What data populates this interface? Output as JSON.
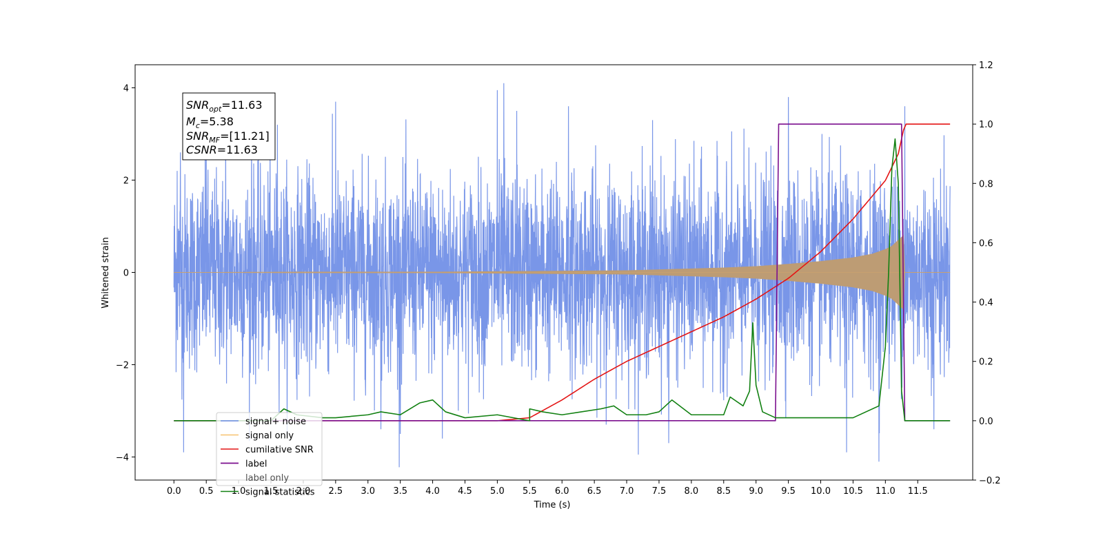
{
  "chart_data": {
    "type": "line",
    "xlabel": "Time (s)",
    "ylabel": "Whitened strain",
    "xlim": [
      -0.6,
      12.35
    ],
    "ylim": [
      -4.5,
      4.5
    ],
    "y2lim": [
      -0.2,
      1.2
    ],
    "x_ticks": [
      0.0,
      0.5,
      1.0,
      1.5,
      2.0,
      2.5,
      3.0,
      3.5,
      4.0,
      4.5,
      5.0,
      5.5,
      6.0,
      6.5,
      7.0,
      7.5,
      8.0,
      8.5,
      9.0,
      9.5,
      10.0,
      10.5,
      11.0,
      11.5
    ],
    "x_tick_labels": [
      "0.0",
      "0.5",
      "1.0",
      "1.5",
      "2.0",
      "2.5",
      "3.0",
      "3.5",
      "4.0",
      "4.5",
      "5.0",
      "5.5",
      "6.0",
      "6.5",
      "7.0",
      "7.5",
      "8.0",
      "8.5",
      "9.0",
      "9.5",
      "10.0",
      "10.5",
      "11.0",
      "11.5"
    ],
    "y_ticks": [
      -4,
      -2,
      0,
      2,
      4
    ],
    "y_tick_labels": [
      "−4",
      "−2",
      "0",
      "2",
      "4"
    ],
    "y2_ticks": [
      -0.2,
      0.0,
      0.2,
      0.4,
      0.6,
      0.8,
      1.0,
      1.2
    ],
    "y2_tick_labels": [
      "−0.2",
      "0.0",
      "0.2",
      "0.4",
      "0.6",
      "0.8",
      "1.0",
      "1.2"
    ],
    "grid": false,
    "legend_position": "lower-left",
    "annotation": {
      "snr_opt": "=11.63",
      "mc": "=5.38",
      "snr_mf": "=[11.21]",
      "csnr": "=11.63"
    },
    "series": [
      {
        "name": "signal+ noise",
        "color": "#6a8be6",
        "axis": "left",
        "kind": "noise",
        "t_range": [
          0.0,
          12.0
        ],
        "std": 1.05,
        "peaks": [
          [
            0.05,
            2.2
          ],
          [
            0.1,
            2.6
          ],
          [
            0.15,
            -3.9
          ],
          [
            0.5,
            3.0
          ],
          [
            0.8,
            3.4
          ],
          [
            1.2,
            3.1
          ],
          [
            1.6,
            3.2
          ],
          [
            2.5,
            3.7
          ],
          [
            3.2,
            -3.4
          ],
          [
            3.5,
            -3.5
          ],
          [
            4.15,
            -3.6
          ],
          [
            5.0,
            3.95
          ],
          [
            5.1,
            4.1
          ],
          [
            5.3,
            3.5
          ],
          [
            6.1,
            3.6
          ],
          [
            7.4,
            3.3
          ],
          [
            7.65,
            -3.7
          ],
          [
            9.5,
            3.8
          ],
          [
            10.4,
            -3.9
          ],
          [
            10.9,
            -4.1
          ],
          [
            11.3,
            3.6
          ],
          [
            11.75,
            -3.4
          ]
        ]
      },
      {
        "name": "signal only",
        "color": "#f5b04b",
        "axis": "left",
        "kind": "chirp",
        "points": [
          [
            0.0,
            0.0
          ],
          [
            2.0,
            0.01
          ],
          [
            4.0,
            0.01
          ],
          [
            5.0,
            0.02
          ],
          [
            6.0,
            0.03
          ],
          [
            7.0,
            0.04
          ],
          [
            8.0,
            0.08
          ],
          [
            8.5,
            0.1
          ],
          [
            9.0,
            0.13
          ],
          [
            9.5,
            0.18
          ],
          [
            10.0,
            0.24
          ],
          [
            10.5,
            0.32
          ],
          [
            10.8,
            0.4
          ],
          [
            11.0,
            0.5
          ],
          [
            11.1,
            0.57
          ],
          [
            11.2,
            0.7
          ],
          [
            11.28,
            0.8
          ],
          [
            11.3,
            0.0
          ],
          [
            12.0,
            0.0
          ]
        ]
      },
      {
        "name": "cumilative SNR",
        "color": "#e41414",
        "axis": "right",
        "points": [
          [
            0.0,
            0.0
          ],
          [
            5.0,
            0.0
          ],
          [
            5.5,
            0.01
          ],
          [
            6.0,
            0.07
          ],
          [
            6.5,
            0.14
          ],
          [
            7.0,
            0.2
          ],
          [
            7.5,
            0.25
          ],
          [
            8.0,
            0.3
          ],
          [
            8.5,
            0.35
          ],
          [
            9.0,
            0.41
          ],
          [
            9.5,
            0.48
          ],
          [
            10.0,
            0.57
          ],
          [
            10.5,
            0.68
          ],
          [
            11.0,
            0.81
          ],
          [
            11.2,
            0.9
          ],
          [
            11.3,
            1.0
          ],
          [
            12.0,
            1.0
          ]
        ]
      },
      {
        "name": "label",
        "color": "#7b0f8e",
        "axis": "right",
        "points": [
          [
            0.0,
            0.0
          ],
          [
            9.3,
            0.0
          ],
          [
            9.35,
            1.0
          ],
          [
            11.25,
            1.0
          ],
          [
            11.3,
            0.0
          ],
          [
            12.0,
            0.0
          ]
        ]
      },
      {
        "name": "label only",
        "hidden_label": true,
        "color": "#7b0f8e",
        "axis": "right",
        "points": []
      },
      {
        "name": "signal statistics",
        "color": "#118011",
        "axis": "right",
        "points": [
          [
            0.0,
            0.0
          ],
          [
            1.5,
            0.0
          ],
          [
            1.7,
            0.04
          ],
          [
            1.9,
            0.02
          ],
          [
            2.3,
            0.01
          ],
          [
            2.5,
            0.01
          ],
          [
            3.0,
            0.02
          ],
          [
            3.2,
            0.03
          ],
          [
            3.5,
            0.02
          ],
          [
            3.8,
            0.06
          ],
          [
            4.0,
            0.07
          ],
          [
            4.2,
            0.03
          ],
          [
            4.5,
            0.01
          ],
          [
            5.0,
            0.02
          ],
          [
            5.5,
            0.0
          ],
          [
            5.5,
            0.04
          ],
          [
            5.7,
            0.03
          ],
          [
            6.0,
            0.02
          ],
          [
            6.3,
            0.03
          ],
          [
            6.6,
            0.04
          ],
          [
            6.8,
            0.05
          ],
          [
            7.0,
            0.02
          ],
          [
            7.3,
            0.02
          ],
          [
            7.5,
            0.03
          ],
          [
            7.7,
            0.07
          ],
          [
            8.0,
            0.02
          ],
          [
            8.5,
            0.02
          ],
          [
            8.6,
            0.08
          ],
          [
            8.8,
            0.05
          ],
          [
            8.9,
            0.1
          ],
          [
            8.95,
            0.33
          ],
          [
            9.0,
            0.12
          ],
          [
            9.1,
            0.03
          ],
          [
            9.3,
            0.01
          ],
          [
            9.7,
            0.01
          ],
          [
            10.0,
            0.01
          ],
          [
            10.5,
            0.01
          ],
          [
            10.9,
            0.05
          ],
          [
            11.0,
            0.25
          ],
          [
            11.05,
            0.5
          ],
          [
            11.1,
            0.85
          ],
          [
            11.15,
            0.95
          ],
          [
            11.2,
            0.8
          ],
          [
            11.25,
            0.1
          ],
          [
            11.3,
            0.0
          ],
          [
            12.0,
            0.0
          ]
        ]
      }
    ]
  }
}
